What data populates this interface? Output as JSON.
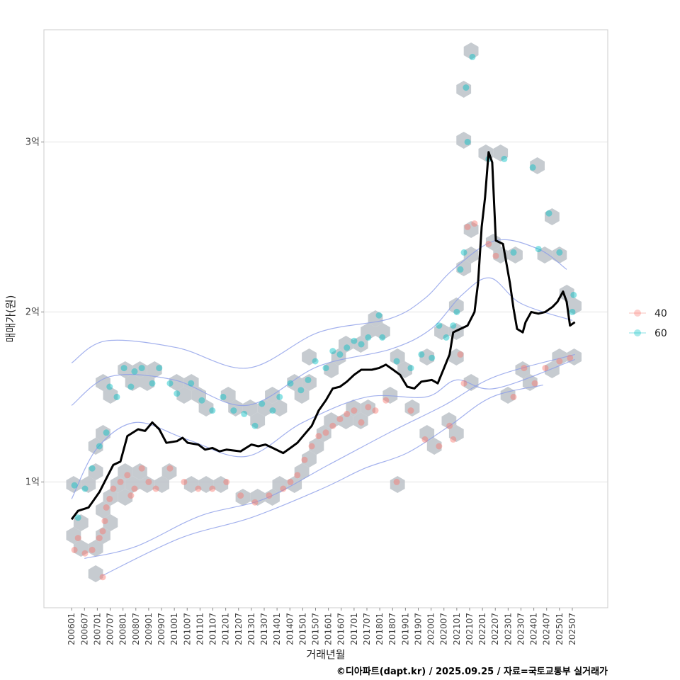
{
  "chart_data": {
    "type": "scatter",
    "title": "",
    "xlabel": "거래년월",
    "ylabel": "매매가(원)",
    "caption": "©디아파트(dapt.kr) / 2025.09.25 / 자료=국토교통부 실거래가",
    "xlim": [
      2004.92,
      2026.88
    ],
    "ylim": [
      0.26,
      3.66
    ],
    "grid": true,
    "legend_position": "right",
    "y_ticks": [
      {
        "value": 1,
        "label": "1억"
      },
      {
        "value": 2,
        "label": "2억"
      },
      {
        "value": 3,
        "label": "3억"
      }
    ],
    "x_tick_labels": [
      "200601",
      "200607",
      "200701",
      "200707",
      "200801",
      "200807",
      "200901",
      "200907",
      "201001",
      "201007",
      "201101",
      "201107",
      "201201",
      "201207",
      "201301",
      "201307",
      "201401",
      "201407",
      "201501",
      "201507",
      "201601",
      "201607",
      "201701",
      "201707",
      "201801",
      "201807",
      "201901",
      "201907",
      "202001",
      "202007",
      "202101",
      "202107",
      "202201",
      "202207",
      "202301",
      "202307",
      "202401",
      "202407",
      "202501",
      "202507"
    ],
    "colors": {
      "s40": "#F8766D",
      "s60": "#00BFC4",
      "hex": "#b8bec4",
      "contour": "#8c9ee8",
      "line": "#000000"
    },
    "series": [
      {
        "name": "40",
        "color": "#F8766D",
        "points": [
          [
            2006.11,
            0.6
          ],
          [
            2006.25,
            0.67
          ],
          [
            2006.52,
            0.58
          ],
          [
            2006.8,
            0.6
          ],
          [
            2007.08,
            0.67
          ],
          [
            2007.21,
            0.71
          ],
          [
            2007.29,
            0.77
          ],
          [
            2007.35,
            0.85
          ],
          [
            2007.48,
            0.9
          ],
          [
            2007.62,
            0.96
          ],
          [
            2007.9,
            1.0
          ],
          [
            2008.17,
            1.04
          ],
          [
            2008.31,
            0.92
          ],
          [
            2008.45,
            0.96
          ],
          [
            2008.73,
            1.08
          ],
          [
            2009.0,
            1.0
          ],
          [
            2009.28,
            0.96
          ],
          [
            2009.83,
            1.08
          ],
          [
            2010.38,
            1.0
          ],
          [
            2010.93,
            0.96
          ],
          [
            2011.48,
            0.96
          ],
          [
            2012.03,
            1.0
          ],
          [
            2012.58,
            0.92
          ],
          [
            2013.14,
            0.88
          ],
          [
            2013.69,
            0.92
          ],
          [
            2014.24,
            0.96
          ],
          [
            2014.52,
            1.0
          ],
          [
            2014.79,
            1.04
          ],
          [
            2015.07,
            1.13
          ],
          [
            2015.35,
            1.21
          ],
          [
            2015.62,
            1.27
          ],
          [
            2015.9,
            1.29
          ],
          [
            2016.17,
            1.33
          ],
          [
            2016.45,
            1.37
          ],
          [
            2016.72,
            1.4
          ],
          [
            2017.0,
            1.42
          ],
          [
            2017.28,
            1.35
          ],
          [
            2017.55,
            1.44
          ],
          [
            2017.83,
            1.42
          ],
          [
            2018.24,
            1.48
          ],
          [
            2018.66,
            1.0
          ],
          [
            2019.21,
            1.42
          ],
          [
            2019.76,
            1.25
          ],
          [
            2020.31,
            1.21
          ],
          [
            2020.72,
            1.33
          ],
          [
            2020.86,
            1.25
          ],
          [
            2021.14,
            1.75
          ],
          [
            2021.28,
            1.58
          ],
          [
            2021.42,
            2.5
          ],
          [
            2021.69,
            2.52
          ],
          [
            2022.24,
            2.4
          ],
          [
            2022.52,
            2.33
          ],
          [
            2023.21,
            1.5
          ],
          [
            2023.62,
            1.67
          ],
          [
            2024.04,
            1.58
          ],
          [
            2024.45,
            1.67
          ],
          [
            2025.0,
            1.71
          ],
          [
            2025.41,
            1.73
          ],
          [
            2007.21,
            0.44
          ]
        ]
      },
      {
        "name": "60",
        "color": "#00BFC4",
        "points": [
          [
            2006.11,
            0.98
          ],
          [
            2006.25,
            0.79
          ],
          [
            2006.52,
            0.96
          ],
          [
            2006.8,
            1.08
          ],
          [
            2007.08,
            1.21
          ],
          [
            2007.35,
            1.29
          ],
          [
            2007.48,
            1.56
          ],
          [
            2007.76,
            1.5
          ],
          [
            2008.04,
            1.67
          ],
          [
            2008.31,
            1.56
          ],
          [
            2008.45,
            1.65
          ],
          [
            2008.73,
            1.67
          ],
          [
            2009.14,
            1.58
          ],
          [
            2009.41,
            1.67
          ],
          [
            2009.83,
            1.58
          ],
          [
            2010.1,
            1.52
          ],
          [
            2010.65,
            1.58
          ],
          [
            2011.07,
            1.48
          ],
          [
            2011.48,
            1.42
          ],
          [
            2011.9,
            1.5
          ],
          [
            2012.31,
            1.42
          ],
          [
            2012.72,
            1.4
          ],
          [
            2013.14,
            1.33
          ],
          [
            2013.41,
            1.46
          ],
          [
            2013.83,
            1.42
          ],
          [
            2014.1,
            1.5
          ],
          [
            2014.52,
            1.58
          ],
          [
            2014.93,
            1.54
          ],
          [
            2015.21,
            1.6
          ],
          [
            2015.49,
            1.71
          ],
          [
            2015.9,
            1.67
          ],
          [
            2016.17,
            1.77
          ],
          [
            2016.45,
            1.75
          ],
          [
            2016.72,
            1.79
          ],
          [
            2017.0,
            1.83
          ],
          [
            2017.28,
            1.81
          ],
          [
            2017.55,
            1.85
          ],
          [
            2017.97,
            1.98
          ],
          [
            2018.1,
            1.85
          ],
          [
            2018.66,
            1.71
          ],
          [
            2019.21,
            1.67
          ],
          [
            2019.62,
            1.75
          ],
          [
            2020.03,
            1.73
          ],
          [
            2020.31,
            1.92
          ],
          [
            2020.59,
            1.85
          ],
          [
            2020.86,
            1.92
          ],
          [
            2021.0,
            2.0
          ],
          [
            2021.14,
            2.25
          ],
          [
            2021.28,
            2.35
          ],
          [
            2021.42,
            3.0
          ],
          [
            2021.36,
            3.32
          ],
          [
            2021.61,
            3.5
          ],
          [
            2022.24,
            2.9
          ],
          [
            2022.85,
            2.9
          ],
          [
            2023.21,
            2.35
          ],
          [
            2023.96,
            2.85
          ],
          [
            2024.18,
            2.37
          ],
          [
            2024.59,
            2.58
          ],
          [
            2025.0,
            2.35
          ],
          [
            2025.55,
            2.1
          ],
          [
            2025.5,
            2.0
          ]
        ]
      }
    ],
    "moving_average": {
      "name": "이동평균",
      "points": [
        [
          2006.0,
          0.78
        ],
        [
          2006.25,
          0.83
        ],
        [
          2006.66,
          0.85
        ],
        [
          2007.08,
          0.94
        ],
        [
          2007.35,
          1.02
        ],
        [
          2007.62,
          1.1
        ],
        [
          2007.9,
          1.12
        ],
        [
          2008.17,
          1.27
        ],
        [
          2008.59,
          1.31
        ],
        [
          2008.86,
          1.3
        ],
        [
          2009.14,
          1.35
        ],
        [
          2009.41,
          1.31
        ],
        [
          2009.69,
          1.23
        ],
        [
          2010.1,
          1.24
        ],
        [
          2010.32,
          1.26
        ],
        [
          2010.52,
          1.23
        ],
        [
          2010.93,
          1.22
        ],
        [
          2011.2,
          1.19
        ],
        [
          2011.48,
          1.2
        ],
        [
          2011.76,
          1.18
        ],
        [
          2012.03,
          1.19
        ],
        [
          2012.58,
          1.18
        ],
        [
          2013.0,
          1.22
        ],
        [
          2013.27,
          1.21
        ],
        [
          2013.55,
          1.22
        ],
        [
          2013.83,
          1.2
        ],
        [
          2014.24,
          1.17
        ],
        [
          2014.52,
          1.2
        ],
        [
          2014.79,
          1.23
        ],
        [
          2015.07,
          1.28
        ],
        [
          2015.35,
          1.33
        ],
        [
          2015.62,
          1.42
        ],
        [
          2015.9,
          1.48
        ],
        [
          2016.17,
          1.55
        ],
        [
          2016.45,
          1.56
        ],
        [
          2016.72,
          1.59
        ],
        [
          2017.0,
          1.63
        ],
        [
          2017.28,
          1.66
        ],
        [
          2017.69,
          1.66
        ],
        [
          2017.97,
          1.67
        ],
        [
          2018.24,
          1.69
        ],
        [
          2018.52,
          1.66
        ],
        [
          2018.79,
          1.63
        ],
        [
          2019.07,
          1.56
        ],
        [
          2019.35,
          1.55
        ],
        [
          2019.62,
          1.59
        ],
        [
          2020.03,
          1.6
        ],
        [
          2020.26,
          1.58
        ],
        [
          2020.45,
          1.65
        ],
        [
          2020.72,
          1.75
        ],
        [
          2020.86,
          1.88
        ],
        [
          2021.14,
          1.9
        ],
        [
          2021.42,
          1.92
        ],
        [
          2021.69,
          2.0
        ],
        [
          2021.83,
          2.17
        ],
        [
          2021.97,
          2.5
        ],
        [
          2022.1,
          2.67
        ],
        [
          2022.24,
          2.94
        ],
        [
          2022.38,
          2.88
        ],
        [
          2022.52,
          2.42
        ],
        [
          2022.8,
          2.4
        ],
        [
          2022.93,
          2.29
        ],
        [
          2023.07,
          2.17
        ],
        [
          2023.21,
          2.02
        ],
        [
          2023.35,
          1.9
        ],
        [
          2023.57,
          1.88
        ],
        [
          2023.68,
          1.94
        ],
        [
          2023.9,
          2.0
        ],
        [
          2024.18,
          1.99
        ],
        [
          2024.45,
          2.0
        ],
        [
          2024.73,
          2.03
        ],
        [
          2024.92,
          2.06
        ],
        [
          2025.14,
          2.12
        ],
        [
          2025.28,
          2.06
        ],
        [
          2025.41,
          1.92
        ],
        [
          2025.6,
          1.94
        ]
      ]
    },
    "contours": [
      [
        [
          2006.0,
          1.7
        ],
        [
          2007.35,
          1.83
        ],
        [
          2010.1,
          1.79
        ],
        [
          2012.86,
          1.67
        ],
        [
          2015.62,
          1.88
        ],
        [
          2018.38,
          1.96
        ],
        [
          2019.76,
          2.08
        ],
        [
          2020.86,
          2.25
        ],
        [
          2022.52,
          2.42
        ],
        [
          2024.18,
          2.37
        ],
        [
          2025.28,
          2.25
        ]
      ],
      [
        [
          2006.0,
          1.45
        ],
        [
          2007.5,
          1.62
        ],
        [
          2010.0,
          1.6
        ],
        [
          2012.8,
          1.45
        ],
        [
          2015.6,
          1.68
        ],
        [
          2018.4,
          1.78
        ],
        [
          2020.0,
          1.9
        ],
        [
          2021.2,
          2.1
        ],
        [
          2022.3,
          2.2
        ],
        [
          2023.5,
          2.05
        ],
        [
          2025.5,
          1.95
        ]
      ],
      [
        [
          2006.0,
          0.9
        ],
        [
          2007.0,
          1.2
        ],
        [
          2008.5,
          1.35
        ],
        [
          2010.5,
          1.25
        ],
        [
          2012.8,
          1.15
        ],
        [
          2015.0,
          1.35
        ],
        [
          2017.5,
          1.5
        ],
        [
          2019.8,
          1.5
        ],
        [
          2021.0,
          1.6
        ],
        [
          2022.5,
          1.55
        ],
        [
          2025.6,
          1.72
        ]
      ],
      [
        [
          2007.21,
          0.45
        ],
        [
          2010.24,
          0.67
        ],
        [
          2012.99,
          0.79
        ],
        [
          2015.75,
          0.96
        ],
        [
          2017.41,
          1.08
        ],
        [
          2019.06,
          1.17
        ],
        [
          2020.72,
          1.33
        ],
        [
          2022.37,
          1.5
        ],
        [
          2024.36,
          1.57
        ]
      ],
      [
        [
          2006.5,
          0.55
        ],
        [
          2008.5,
          0.62
        ],
        [
          2011.0,
          0.8
        ],
        [
          2013.5,
          0.9
        ],
        [
          2016.0,
          1.1
        ],
        [
          2018.5,
          1.3
        ],
        [
          2020.5,
          1.45
        ],
        [
          2022.5,
          1.62
        ],
        [
          2025.6,
          1.75
        ]
      ]
    ],
    "legend": [
      {
        "label": "40",
        "color": "#F8766D"
      },
      {
        "label": "60",
        "color": "#00BFC4"
      }
    ]
  }
}
